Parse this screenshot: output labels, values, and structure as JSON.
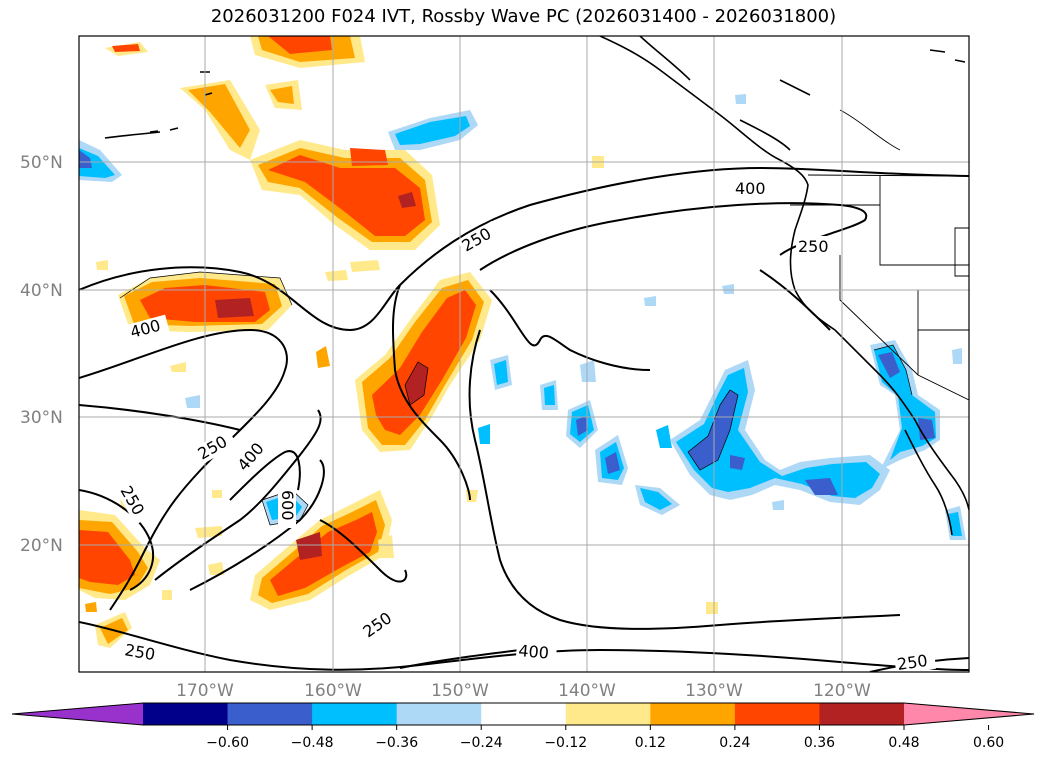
{
  "title": "2026031200 F024 IVT, Rossby Wave PC (2026031400 - 2026031800)",
  "lat_labels": [
    "50°N",
    "40°N",
    "30°N",
    "20°N"
  ],
  "lon_labels": [
    "170°W",
    "160°W",
    "150°W",
    "140°W",
    "130°W",
    "120°W"
  ],
  "contour_labels": {
    "c250_a": "250",
    "c400_a": "400",
    "c250_b": "250",
    "c400_b": "400",
    "c250_c": "250",
    "c400_c": "400",
    "c250_d": "250",
    "c600": "600",
    "c250_e": "250",
    "c250_f": "250",
    "c400_d": "400",
    "c250_g": "250"
  },
  "colorbar": {
    "ticks": [
      "−0.60",
      "−0.48",
      "−0.36",
      "−0.24",
      "−0.12",
      "0.12",
      "0.24",
      "0.36",
      "0.48",
      "0.60"
    ],
    "colors": [
      "#9932cc",
      "#00008b",
      "#3a5fcd",
      "#00bfff",
      "#add8f6",
      "#ffffff",
      "#ffe98a",
      "#ffa500",
      "#ff4500",
      "#b22222",
      "#ff88aa"
    ]
  }
}
